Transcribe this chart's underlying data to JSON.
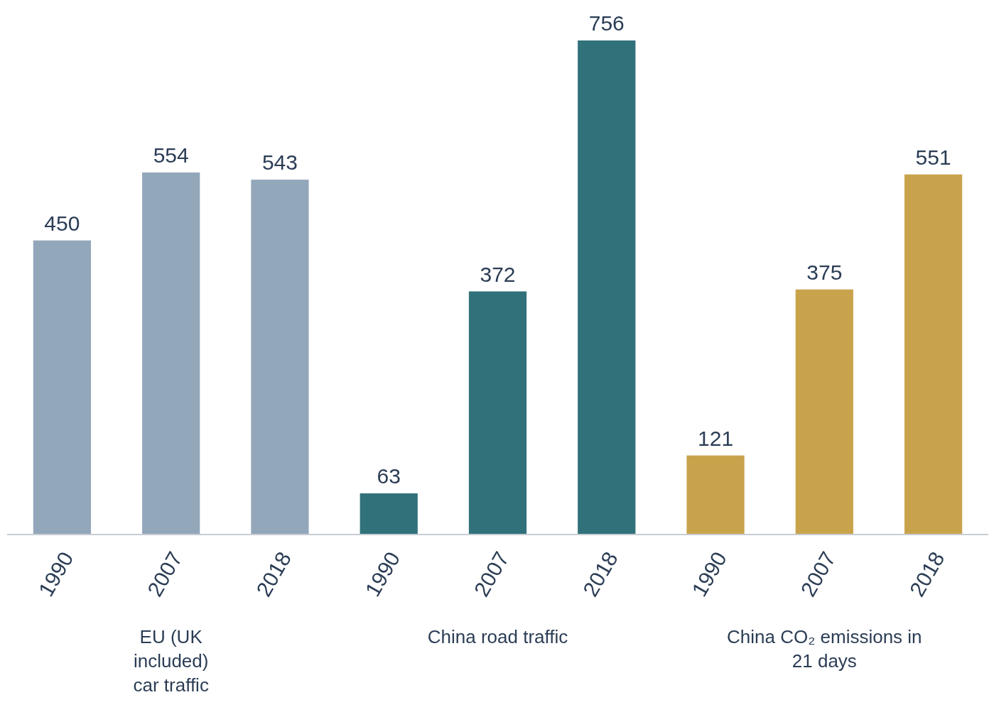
{
  "chart_data": {
    "type": "bar",
    "categories": [
      "1990",
      "2007",
      "2018",
      "1990",
      "2007",
      "2018",
      "1990",
      "2007",
      "2018"
    ],
    "values": [
      450,
      554,
      543,
      63,
      372,
      756,
      121,
      375,
      551
    ],
    "colors": [
      "#93a7bb",
      "#93a7bb",
      "#93a7bb",
      "#31717a",
      "#31717a",
      "#31717a",
      "#c9a34c",
      "#c9a34c",
      "#c9a34c"
    ],
    "data_labels": true,
    "annotations": [
      "EU (UK included) car traffic",
      "China road traffic",
      "China CO₂ emissions in 21 days"
    ]
  }
}
